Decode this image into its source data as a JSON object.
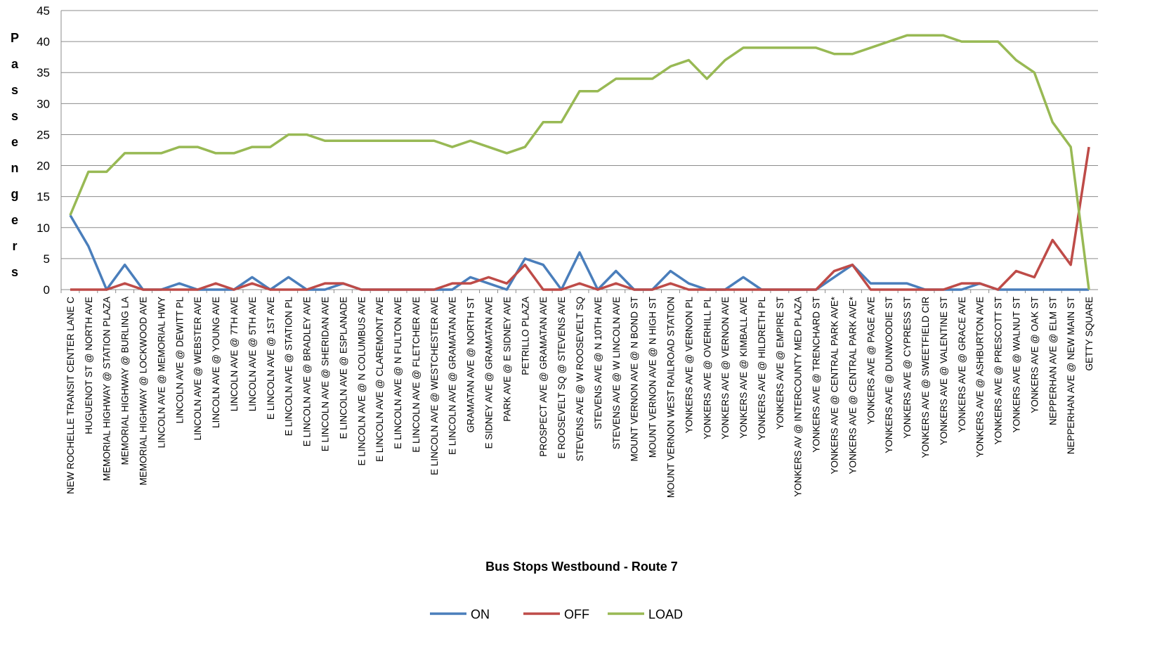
{
  "chart_data": {
    "type": "line",
    "y_label": "Passengers",
    "x_label": "Bus Stops Westbound - Route 7",
    "categories": [
      "NEW ROCHELLE TRANSIT CENTER LANE C",
      "HUGUENOT ST @ NORTH AVE",
      "MEMORIAL HIGHWAY @ STATION PLAZA",
      "MEMORIAL HIGHWAY @ BURLING LA",
      "MEMORIAL HIGHWAY @ LOCKWOOD AVE",
      "LINCOLN AVE @ MEMORIAL HWY",
      "LINCOLN AVE @ DEWITT PL",
      "LINCOLN AVE @ WEBSTER AVE",
      "LINCOLN AVE @ YOUNG AVE",
      "LINCOLN AVE @ 7TH AVE",
      "LINCOLN AVE @ 5TH AVE",
      "E LINCOLN AVE @ 1ST AVE",
      "E LINCOLN  AVE @ STATION PL",
      "E LINCOLN  AVE @ BRADLEY AVE",
      "E LINCOLN  AVE @ SHERIDAN AVE",
      "E LINCOLN  AVE @ ESPLANADE",
      "E LINCOLN  AVE @ N COLUMBUS AVE",
      "E LINCOLN  AVE @ CLAREMONT AVE",
      "E LINCOLN  AVE @ N FULTON AVE",
      "E LINCOLN  AVE @ FLETCHER AVE",
      "E LINCOLN  AVE @ WESTCHESTER AVE",
      "E LINCOLN  AVE @ GRAMATAN AVE",
      "GRAMATAN AVE @ NORTH ST",
      "E SIDNEY AVE @ GRAMATAN AVE",
      "PARK AVE @ E SIDNEY AVE",
      "PETRILLO PLAZA",
      "PROSPECT AVE @ GRAMATAN AVE",
      "E ROOSEVELT SQ @ STEVENS AVE",
      "STEVENS AVE @ W ROOSEVELT SQ",
      "STEVENS AVE @ N 10TH AVE",
      "STEVENS AVE @ W LINCOLN AVE",
      "MOUNT VERNON AVE @ N BOND ST",
      "MOUNT VERNON AVE @ N HIGH ST",
      "MOUNT VERNON WEST RAILROAD STATION",
      "YONKERS AVE @ VERNON PL",
      "YONKERS AVE @ OVERHILL PL",
      "YONKERS AVE @ VERNON AVE",
      "YONKERS AVE @ KIMBALL AVE",
      "YONKERS AVE @ HILDRETH PL",
      "YONKERS AVE @ EMPIRE ST",
      "YONKERS AV @ INTERCOUNTY MED PLAZA",
      "YONKERS AVE @ TRENCHARD ST",
      "YONKERS AVE @ CENTRAL PARK AVE*",
      "YONKERS AVE @ CENTRAL PARK AVE*",
      "YONKERS AVE @ PAGE AVE",
      "YONKERS AVE @ DUNWOODIE ST",
      "YONKERS AVE @ CYPRESS ST",
      "YONKERS AVE @ SWEETFIELD CIR",
      "YONKERS AVE @ VALENTINE ST",
      "YONKERS AVE @ GRACE AVE",
      "YONKERS AVE @ ASHBURTON AVE",
      "YONKERS AVE @ PRESCOTT ST",
      "YONKERS AVE @ WALNUT ST",
      "YONKERS AVE @ OAK ST",
      "NEPPERHAN AVE @ ELM ST",
      "NEPPERHAN AVE @ NEW MAIN ST",
      "GETTY SQUARE"
    ],
    "series": [
      {
        "name": "ON",
        "color": "#4a7ebb",
        "values": [
          12,
          7,
          0,
          4,
          0,
          0,
          1,
          0,
          0,
          0,
          2,
          0,
          2,
          0,
          0,
          1,
          0,
          0,
          0,
          0,
          0,
          0,
          2,
          1,
          0,
          5,
          4,
          0,
          6,
          0,
          3,
          0,
          0,
          3,
          1,
          0,
          0,
          2,
          0,
          0,
          0,
          0,
          2,
          4,
          1,
          1,
          1,
          0,
          0,
          0,
          1,
          0,
          0,
          0,
          0,
          0,
          0
        ]
      },
      {
        "name": "OFF",
        "color": "#be4b48",
        "values": [
          0,
          0,
          0,
          1,
          0,
          0,
          0,
          0,
          1,
          0,
          1,
          0,
          0,
          0,
          1,
          1,
          0,
          0,
          0,
          0,
          0,
          1,
          1,
          2,
          1,
          4,
          0,
          0,
          1,
          0,
          1,
          0,
          0,
          1,
          0,
          0,
          0,
          0,
          0,
          0,
          0,
          0,
          3,
          4,
          0,
          0,
          0,
          0,
          0,
          1,
          1,
          0,
          3,
          2,
          8,
          4,
          23
        ]
      },
      {
        "name": "LOAD",
        "color": "#98b954",
        "values": [
          12,
          19,
          19,
          22,
          22,
          22,
          23,
          23,
          22,
          22,
          23,
          23,
          25,
          25,
          24,
          24,
          24,
          24,
          24,
          24,
          24,
          23,
          24,
          23,
          22,
          23,
          27,
          27,
          32,
          32,
          34,
          34,
          34,
          36,
          37,
          34,
          37,
          39,
          39,
          39,
          39,
          39,
          38,
          38,
          39,
          40,
          41,
          41,
          41,
          40,
          40,
          40,
          37,
          35,
          27,
          23,
          0
        ]
      }
    ],
    "ylim": [
      0,
      45
    ],
    "yticks": [
      0,
      5,
      10,
      15,
      20,
      25,
      30,
      35,
      40,
      45
    ],
    "grid": true,
    "legend": "bottom"
  }
}
